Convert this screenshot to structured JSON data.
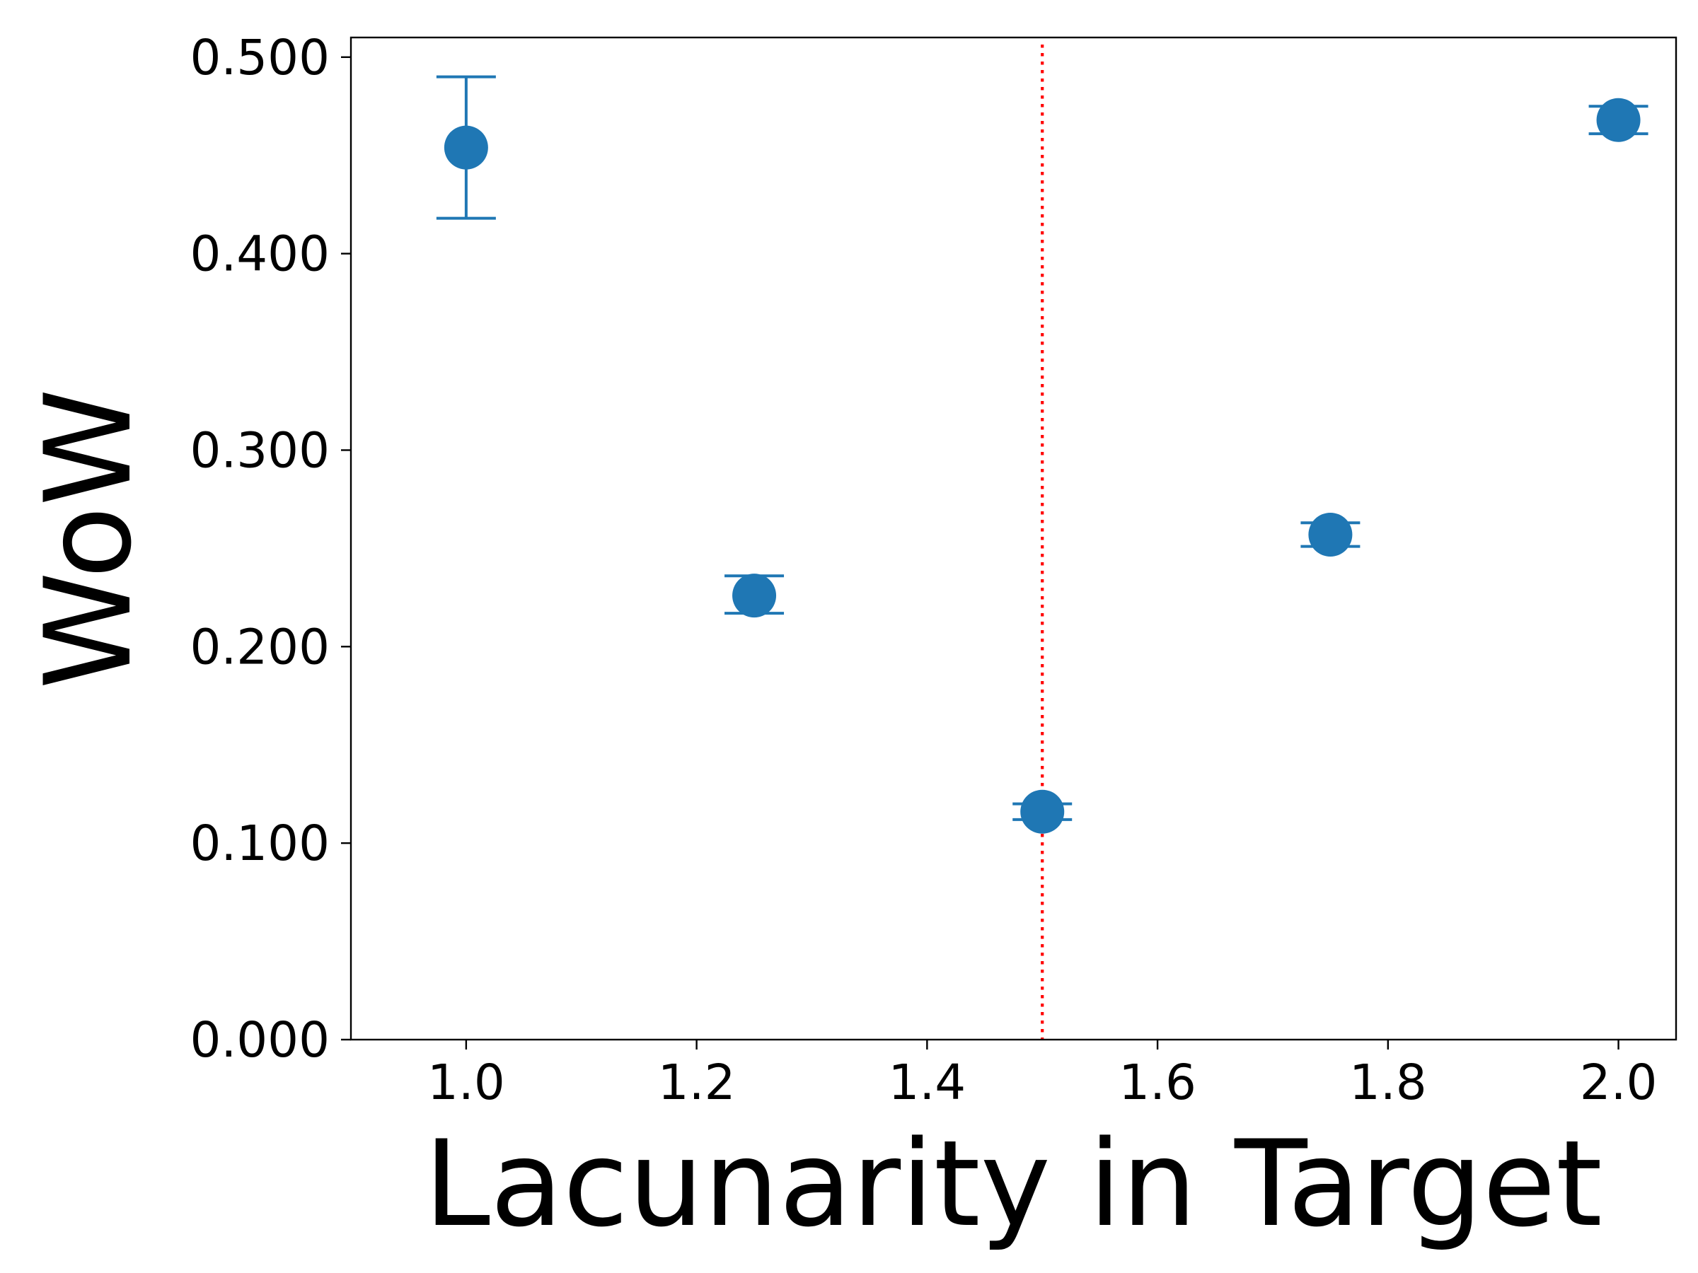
{
  "chart_data": {
    "type": "scatter",
    "title": "",
    "xlabel": "Lacunarity in Target",
    "ylabel": "WoW",
    "xlim": [
      0.9,
      2.05
    ],
    "ylim": [
      0.0,
      0.51
    ],
    "x_ticks": [
      1.0,
      1.2,
      1.4,
      1.6,
      1.8,
      2.0
    ],
    "x_tick_labels": [
      "1.0",
      "1.2",
      "1.4",
      "1.6",
      "1.8",
      "2.0"
    ],
    "y_ticks": [
      0.0,
      0.1,
      0.2,
      0.3,
      0.4,
      0.5
    ],
    "y_tick_labels": [
      "0.000",
      "0.100",
      "0.200",
      "0.300",
      "0.400",
      "0.500"
    ],
    "grid": false,
    "legend": "none",
    "series": [
      {
        "x": [
          1.0,
          1.25,
          1.5,
          1.75,
          2.0
        ],
        "y": [
          0.454,
          0.226,
          0.116,
          0.257,
          0.468
        ],
        "yerr_low": [
          0.418,
          0.217,
          0.112,
          0.251,
          0.461
        ],
        "yerr_high": [
          0.49,
          0.236,
          0.12,
          0.263,
          0.475
        ],
        "color": "#1f77b4"
      }
    ],
    "reference_line": {
      "orientation": "vertical",
      "x": 1.5,
      "style": "dotted",
      "color": "#ff0000"
    }
  }
}
